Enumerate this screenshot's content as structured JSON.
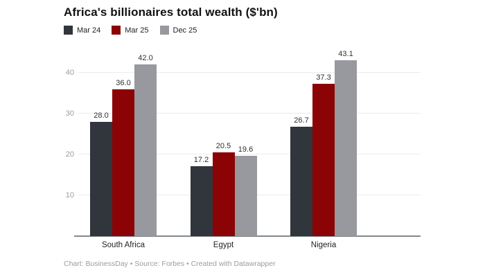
{
  "title": "Africa's billionaires total wealth ($'bn)",
  "footer": "Chart: BusinessDay • Source: Forbes • Created with Datawrapper",
  "colors": {
    "mar24": "#30363c",
    "mar25": "#8c0305",
    "dec25": "#97999e",
    "gridline": "#ebebeb",
    "axis_line": "#83888d",
    "tick_label": "#9c9c9c",
    "value_label": "#2f2f2f"
  },
  "legend": {
    "items": [
      {
        "label": "Mar 24",
        "color": "#30363c"
      },
      {
        "label": "Mar 25",
        "color": "#8c0305"
      },
      {
        "label": "Dec 25",
        "color": "#97999e"
      }
    ]
  },
  "chart_data": {
    "type": "bar",
    "title": "Africa's billionaires total wealth ($'bn)",
    "categories": [
      "South Africa",
      "Egypt",
      "Nigeria"
    ],
    "series": [
      {
        "name": "Mar 24",
        "color": "#30363c",
        "values": [
          28.0,
          17.2,
          26.7
        ],
        "labels": [
          "28.0",
          "17.2",
          "26.7"
        ]
      },
      {
        "name": "Mar 25",
        "color": "#8c0305",
        "values": [
          36.0,
          20.5,
          37.3
        ],
        "labels": [
          "36.0",
          "20.5",
          "37.3"
        ]
      },
      {
        "name": "Dec 25",
        "color": "#97999e",
        "values": [
          42.0,
          19.6,
          43.1
        ],
        "labels": [
          "42.0",
          "19.6",
          "43.1"
        ]
      }
    ],
    "yticks": [
      10,
      20,
      30,
      40
    ],
    "ylim": [
      0,
      48
    ],
    "xlabel": "",
    "ylabel": "",
    "grid": true,
    "legend_position": "top-left",
    "value_labels_shown": true
  }
}
